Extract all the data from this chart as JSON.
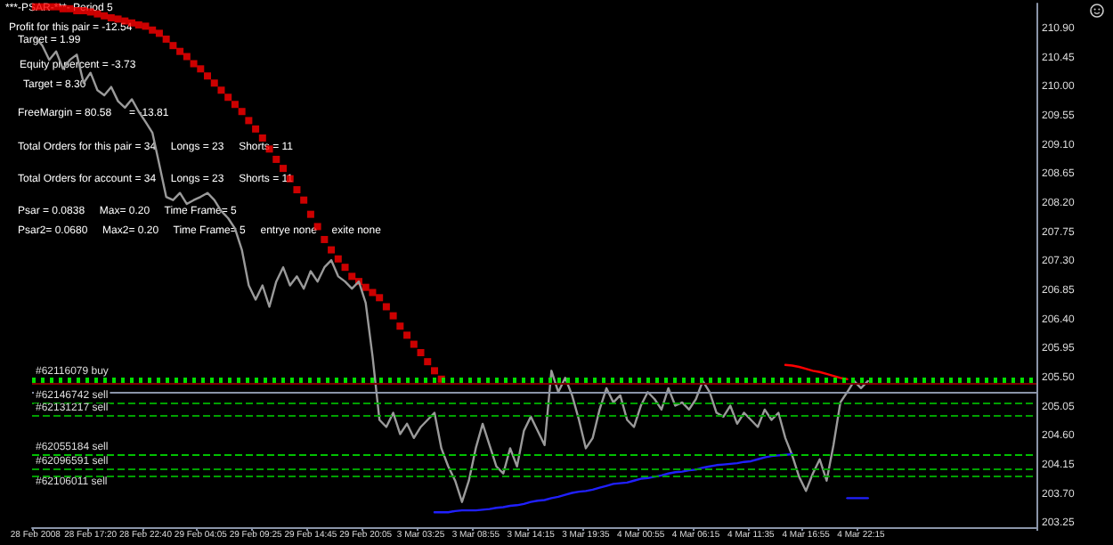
{
  "chart_data": {
    "type": "line",
    "title": "***-PSAR-***- Period 5",
    "categories": [
      "28 Feb 2008",
      null,
      null,
      null,
      null,
      null,
      null,
      null,
      "28 Feb 17:20",
      null,
      null,
      null,
      null,
      null,
      null,
      null,
      "28 Feb 22:40",
      null,
      null,
      null,
      null,
      null,
      null,
      null,
      "29 Feb 04:05",
      null,
      null,
      null,
      null,
      null,
      null,
      null,
      "29 Feb 09:25",
      null,
      null,
      null,
      null,
      null,
      null,
      null,
      "29 Feb 14:45",
      null,
      null,
      null,
      null,
      null,
      null,
      null,
      "29 Feb 20:05",
      null,
      null,
      null,
      null,
      null,
      null,
      null,
      "3 Mar 03:25",
      null,
      null,
      null,
      null,
      null,
      null,
      null,
      "3 Mar 08:55",
      null,
      null,
      null,
      null,
      null,
      null,
      null,
      "3 Mar 14:15",
      null,
      null,
      null,
      null,
      null,
      null,
      null,
      "3 Mar 19:35",
      null,
      null,
      null,
      null,
      null,
      null,
      null,
      "4 Mar 00:55",
      null,
      null,
      null,
      null,
      null,
      null,
      null,
      "4 Mar 06:15",
      null,
      null,
      null,
      null,
      null,
      null,
      null,
      "4 Mar 11:35",
      null,
      null,
      null,
      null,
      null,
      null,
      null,
      "4 Mar 16:55",
      null,
      null,
      null,
      null,
      null,
      null,
      null,
      "4 Mar 22:15",
      null,
      null,
      null,
      null,
      null,
      null,
      null,
      null,
      null,
      null,
      null,
      null,
      null,
      null,
      null,
      null,
      null,
      null,
      null,
      null,
      null,
      null,
      null,
      null,
      null
    ],
    "series": [
      {
        "color": "#9a9a9a",
        "marker": "none",
        "values": [
          210.78,
          210.65,
          210.43,
          210.56,
          210.29,
          210.43,
          210.51,
          210.07,
          210.23,
          209.96,
          209.88,
          210.01,
          209.79,
          209.69,
          209.82,
          209.63,
          209.47,
          209.3,
          208.81,
          208.31,
          208.26,
          208.37,
          208.2,
          208.26,
          208.31,
          208.37,
          208.26,
          208.09,
          207.98,
          207.82,
          207.49,
          206.94,
          206.72,
          206.94,
          206.61,
          207.0,
          207.22,
          206.94,
          207.08,
          206.89,
          207.16,
          207.0,
          207.22,
          207.33,
          207.08,
          207.0,
          206.89,
          207.0,
          206.67,
          205.84,
          204.86,
          204.75,
          204.97,
          204.64,
          204.8,
          204.58,
          204.75,
          204.86,
          204.97,
          204.42,
          204.14,
          203.92,
          203.59,
          203.92,
          204.42,
          204.8,
          204.47,
          204.14,
          204.03,
          204.42,
          204.14,
          204.69,
          204.91,
          204.69,
          204.47,
          205.62,
          205.29,
          205.51,
          205.24,
          204.86,
          204.42,
          204.58,
          205.02,
          205.35,
          205.13,
          205.24,
          204.86,
          204.75,
          205.08,
          205.29,
          205.18,
          205.02,
          205.35,
          205.08,
          205.13,
          205.02,
          205.18,
          205.46,
          205.29,
          204.97,
          204.91,
          205.08,
          204.8,
          204.97,
          204.86,
          204.75,
          205.02,
          204.86,
          204.97,
          204.58,
          204.31,
          203.98,
          203.76,
          204.03,
          204.25,
          203.92,
          204.47,
          205.13,
          205.29,
          205.46,
          205.35,
          205.46,
          null,
          null,
          null,
          null,
          null,
          null,
          null,
          null,
          null,
          null,
          null,
          null,
          null,
          null,
          null,
          null,
          null,
          null,
          null,
          null,
          null,
          null,
          null,
          null
        ]
      },
      {
        "type": "scatter",
        "color": "#ff0000",
        "marker": "square",
        "values": [
          211.25,
          211.25,
          211.25,
          211.25,
          211.22,
          211.22,
          211.19,
          211.19,
          211.17,
          211.14,
          211.11,
          211.08,
          211.06,
          211.03,
          211.0,
          210.97,
          210.95,
          210.89,
          210.84,
          210.75,
          210.65,
          210.56,
          210.48,
          210.37,
          210.29,
          210.18,
          210.07,
          209.96,
          209.85,
          209.74,
          209.63,
          209.49,
          209.36,
          209.22,
          209.05,
          208.89,
          208.75,
          208.59,
          208.42,
          208.26,
          208.04,
          207.85,
          207.65,
          207.49,
          207.35,
          207.22,
          207.08,
          207.0,
          206.91,
          206.83,
          206.75,
          206.61,
          206.47,
          206.31,
          206.17,
          206.03,
          205.9,
          205.76,
          205.62,
          205.49,
          null,
          null,
          null,
          null,
          null,
          null,
          null,
          null,
          null,
          null,
          null,
          null,
          null,
          null,
          null,
          null,
          null,
          null,
          null,
          null,
          null,
          null,
          null,
          null,
          null,
          null,
          null,
          null,
          null,
          null,
          null,
          null,
          null,
          null,
          null,
          null,
          null,
          null,
          null,
          null,
          null,
          null,
          null,
          null,
          null,
          null,
          null,
          null,
          null,
          null,
          null,
          null,
          null,
          null,
          null,
          null,
          null,
          null,
          null,
          null,
          null,
          null,
          null,
          null,
          null,
          null,
          null,
          null,
          null,
          null,
          null,
          null,
          null,
          null,
          null,
          null,
          null,
          null,
          null,
          null,
          null,
          null,
          null,
          null,
          null,
          null
        ]
      },
      {
        "color": "#2020ff",
        "marker": "none",
        "values": [
          null,
          null,
          null,
          null,
          null,
          null,
          null,
          null,
          null,
          null,
          null,
          null,
          null,
          null,
          null,
          null,
          null,
          null,
          null,
          null,
          null,
          null,
          null,
          null,
          null,
          null,
          null,
          null,
          null,
          null,
          null,
          null,
          null,
          null,
          null,
          null,
          null,
          null,
          null,
          null,
          null,
          null,
          null,
          null,
          null,
          null,
          null,
          null,
          null,
          null,
          null,
          null,
          null,
          null,
          null,
          null,
          null,
          null,
          203.43,
          203.43,
          203.43,
          203.45,
          203.46,
          203.46,
          203.46,
          203.47,
          203.48,
          203.5,
          203.51,
          203.53,
          203.54,
          203.56,
          203.59,
          203.61,
          203.62,
          203.65,
          203.67,
          203.7,
          203.73,
          203.75,
          203.76,
          203.78,
          203.81,
          203.84,
          203.87,
          203.88,
          203.89,
          203.92,
          203.95,
          203.96,
          203.98,
          204.0,
          204.03,
          204.05,
          204.06,
          204.08,
          204.09,
          204.12,
          204.14,
          204.16,
          204.17,
          204.18,
          204.19,
          204.21,
          204.22,
          204.25,
          204.28,
          204.3,
          204.31,
          204.32,
          204.33,
          null,
          null,
          null,
          null,
          null,
          null,
          null,
          null,
          null,
          null,
          null,
          null,
          null,
          null,
          null,
          null,
          null,
          null,
          null,
          null,
          null,
          null,
          null,
          null,
          null,
          null,
          null,
          null,
          null,
          null,
          null,
          null,
          null,
          null,
          null
        ]
      },
      {
        "color": "#ff0000",
        "marker": "none",
        "values": [
          null,
          null,
          null,
          null,
          null,
          null,
          null,
          null,
          null,
          null,
          null,
          null,
          null,
          null,
          null,
          null,
          null,
          null,
          null,
          null,
          null,
          null,
          null,
          null,
          null,
          null,
          null,
          null,
          null,
          null,
          null,
          null,
          null,
          null,
          null,
          null,
          null,
          null,
          null,
          null,
          null,
          null,
          null,
          null,
          null,
          null,
          null,
          null,
          null,
          null,
          null,
          null,
          null,
          null,
          null,
          null,
          null,
          null,
          null,
          null,
          null,
          null,
          null,
          null,
          null,
          null,
          null,
          null,
          null,
          null,
          null,
          null,
          null,
          null,
          null,
          null,
          null,
          null,
          null,
          null,
          null,
          null,
          null,
          null,
          null,
          null,
          null,
          null,
          null,
          null,
          null,
          null,
          null,
          null,
          null,
          null,
          null,
          null,
          null,
          null,
          null,
          null,
          null,
          null,
          null,
          null,
          null,
          null,
          null,
          205.71,
          205.7,
          205.68,
          205.65,
          205.62,
          205.6,
          205.57,
          205.54,
          205.51,
          205.49,
          null,
          null,
          null,
          null,
          null,
          null,
          null,
          null,
          null,
          null,
          null,
          null,
          null,
          null,
          null,
          null,
          null,
          null,
          null,
          null,
          null,
          null,
          null,
          null,
          null,
          null,
          null
        ]
      },
      {
        "color": "#2020ff",
        "marker": "none",
        "values": [
          null,
          null,
          null,
          null,
          null,
          null,
          null,
          null,
          null,
          null,
          null,
          null,
          null,
          null,
          null,
          null,
          null,
          null,
          null,
          null,
          null,
          null,
          null,
          null,
          null,
          null,
          null,
          null,
          null,
          null,
          null,
          null,
          null,
          null,
          null,
          null,
          null,
          null,
          null,
          null,
          null,
          null,
          null,
          null,
          null,
          null,
          null,
          null,
          null,
          null,
          null,
          null,
          null,
          null,
          null,
          null,
          null,
          null,
          null,
          null,
          null,
          null,
          null,
          null,
          null,
          null,
          null,
          null,
          null,
          null,
          null,
          null,
          null,
          null,
          null,
          null,
          null,
          null,
          null,
          null,
          null,
          null,
          null,
          null,
          null,
          null,
          null,
          null,
          null,
          null,
          null,
          null,
          null,
          null,
          null,
          null,
          null,
          null,
          null,
          null,
          null,
          null,
          null,
          null,
          null,
          null,
          null,
          null,
          null,
          null,
          null,
          null,
          null,
          null,
          null,
          null,
          null,
          null,
          203.65,
          203.65,
          203.65,
          203.65,
          null,
          null,
          null,
          null,
          null,
          null,
          null,
          null,
          null,
          null,
          null,
          null,
          null,
          null,
          null,
          null,
          null,
          null,
          null,
          null,
          null,
          null,
          null,
          null
        ]
      }
    ],
    "ylim": [
      203.2,
      211.3
    ],
    "yticks": [
      {
        "value": 203.25,
        "label": "203.25"
      },
      {
        "value": 203.7,
        "label": "203.70"
      },
      {
        "value": 204.15,
        "label": "204.15"
      },
      {
        "value": 204.6,
        "label": "204.60"
      },
      {
        "value": 205.05,
        "label": "205.05"
      },
      {
        "value": 205.5,
        "label": "205.50"
      },
      {
        "value": 205.95,
        "label": "205.95"
      },
      {
        "value": 206.4,
        "label": "206.40"
      },
      {
        "value": 206.85,
        "label": "206.85"
      },
      {
        "value": 207.3,
        "label": "207.30"
      },
      {
        "value": 207.75,
        "label": "207.75"
      },
      {
        "value": 208.2,
        "label": "208.20"
      },
      {
        "value": 208.65,
        "label": "208.65"
      },
      {
        "value": 209.1,
        "label": "209.10"
      },
      {
        "value": 209.55,
        "label": "209.55"
      },
      {
        "value": 210.0,
        "label": "210.00"
      },
      {
        "value": 210.45,
        "label": "210.45"
      },
      {
        "value": 210.9,
        "label": "210.90"
      }
    ],
    "ref_lines": [
      {
        "axis": "y",
        "value": 205.49,
        "label": "#62116079 buy",
        "color": "#00e000",
        "line_style": "dotted"
      },
      {
        "axis": "y",
        "value": 205.43,
        "color": "#800000",
        "line_style": "solid"
      },
      {
        "axis": "y",
        "value": 205.3,
        "color": "#8a94a8",
        "line_style": "solid"
      },
      {
        "axis": "y",
        "value": 205.11,
        "label": "#62146742 sell",
        "color": "#00a000",
        "line_style": "dashed"
      },
      {
        "axis": "y",
        "value": 204.92,
        "label": "#62131217 sell",
        "color": "#00a000",
        "line_style": "dashed"
      },
      {
        "axis": "y",
        "value": 204.31,
        "label": "#62055184 sell",
        "color": "#00c000",
        "line_style": "dashed"
      },
      {
        "axis": "y",
        "value": 204.09,
        "label": "#62096591 sell",
        "color": "#00a000",
        "line_style": "dashed"
      },
      {
        "axis": "y",
        "value": 204.0,
        "label": "#62106011 sell",
        "color": "#00a000",
        "line_style": "dashed"
      }
    ],
    "annotations": [
      "Profit for this pair = -12.54",
      "Target = 1.99",
      "Equity pl percent = -3.73",
      "Target = 8.30",
      "FreeMargin = 80.58      = -13.81",
      "Total Orders for this pair = 34     Longs = 23     Shorts = 11",
      "Total Orders for account = 34     Longs = 23     Shorts = 11",
      "Psar = 0.0838     Max= 0.20     Time Frame= 5",
      "Psar2= 0.0680     Max2= 0.20     Time Frame= 5     entrye none     exite none"
    ]
  }
}
